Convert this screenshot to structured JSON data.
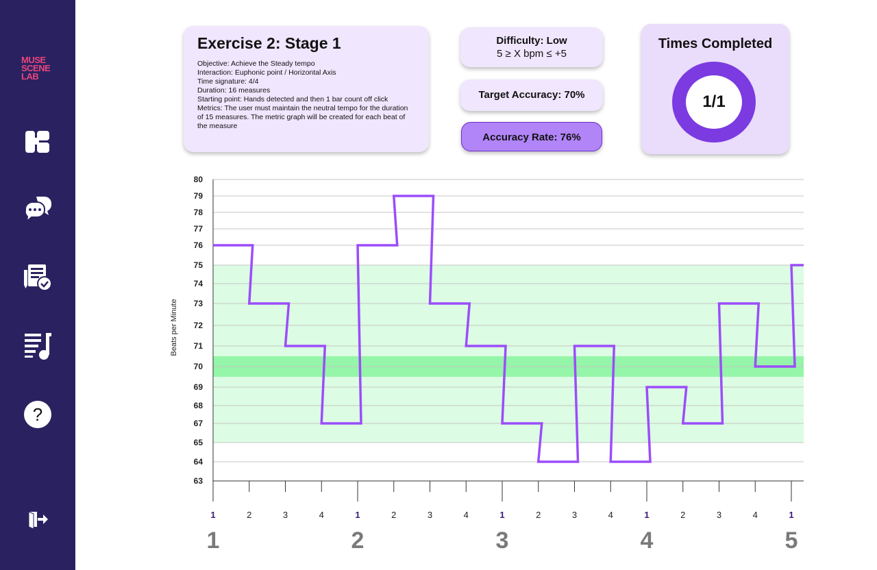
{
  "sidebar": {
    "logo_lines": [
      "MUSE",
      "SCENE",
      "LAB"
    ],
    "icons": [
      "dashboard-icon",
      "chat-icon",
      "exercises-icon",
      "playlist-music-icon",
      "help-icon",
      "logout-icon"
    ]
  },
  "exercise": {
    "title": "Exercise 2: Stage 1",
    "lines": [
      "Objective: Achieve the Steady tempo",
      "Interaction: Euphonic point / Horizontal Axis",
      "Time signature: 4/4",
      "Duration: 16 measures",
      "Starting point: Hands detected and then 1 bar count off click",
      "Metrics: The user must maintain the neutral tempo for the duration of 15 measures. The metric graph will be created for each beat of the measure"
    ]
  },
  "difficulty": {
    "label": "Difficulty: Low",
    "range": "5 ≥ X bpm ≤ +5"
  },
  "target_accuracy": "Target Accuracy: 70%",
  "accuracy_rate": "Accuracy Rate: 76%",
  "times_completed": {
    "title": "Times Completed",
    "value": "1/1"
  },
  "colors": {
    "sidebar": "#2a2260",
    "accent": "#9b4dfa",
    "card": "#f0e6fd",
    "band_light": "#dcfce3",
    "band_dark": "#95f5a8",
    "donut": "#7b3be0",
    "logo": "#e8467c"
  },
  "chart_data": {
    "type": "line",
    "step": true,
    "ylabel": "Beats per Minute",
    "yticks": [
      80,
      79,
      78,
      77,
      76,
      75,
      74,
      73,
      72,
      71,
      70,
      69,
      68,
      67,
      65,
      64,
      63
    ],
    "beat_labels": [
      "1",
      "2",
      "3",
      "4",
      "1",
      "2",
      "3",
      "4",
      "1",
      "2",
      "3",
      "4",
      "1",
      "2",
      "3",
      "4",
      "1"
    ],
    "measure_labels": [
      "1",
      "2",
      "3",
      "4",
      "5"
    ],
    "bands": [
      {
        "from": 65,
        "to": 75,
        "color": "#dcfce3"
      },
      {
        "from": 69.5,
        "to": 70.5,
        "color": "#95f5a8"
      }
    ],
    "series": [
      {
        "values": [
          76,
          73,
          71,
          67,
          76,
          79,
          73,
          71,
          67,
          64,
          71,
          64,
          69,
          67,
          73,
          70,
          75
        ]
      }
    ]
  }
}
